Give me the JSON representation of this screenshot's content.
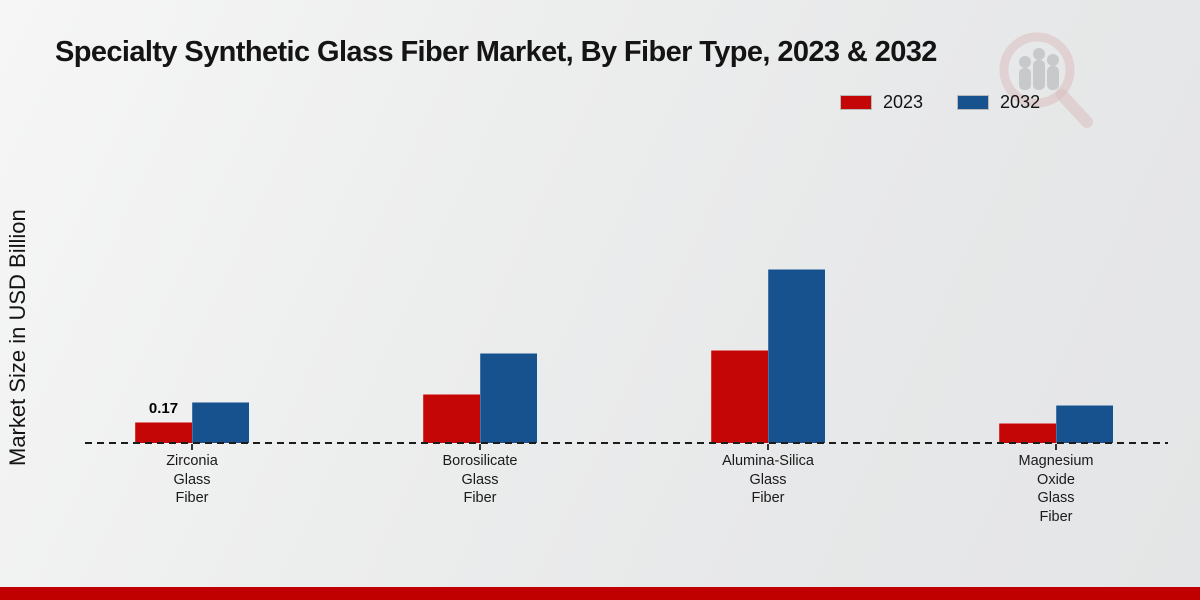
{
  "page": {
    "title": "Specialty Synthetic Glass Fiber Market, By Fiber Type, 2023 & 2032",
    "y_axis_label": "Market Size in USD Billion"
  },
  "legend": [
    {
      "label": "2023",
      "color": "#c40606"
    },
    {
      "label": "2032",
      "color": "#17518e"
    }
  ],
  "chart_data": {
    "type": "bar",
    "title": "Specialty Synthetic Glass Fiber Market, By Fiber Type, 2023 & 2032",
    "xlabel": "",
    "ylabel": "Market Size in USD Billion",
    "categories": [
      "Zirconia Glass Fiber",
      "Borosilicate Glass Fiber",
      "Alumina-Silica Glass Fiber",
      "Magnesium Oxide Glass Fiber"
    ],
    "category_lines": [
      [
        "Zirconia",
        "Glass",
        "Fiber"
      ],
      [
        "Borosilicate",
        "Glass",
        "Fiber"
      ],
      [
        "Alumina-Silica",
        "Glass",
        "Fiber"
      ],
      [
        "Magnesium",
        "Oxide",
        "Glass",
        "Fiber"
      ]
    ],
    "series": [
      {
        "name": "2023",
        "color": "#c40606",
        "values": [
          0.17,
          0.4,
          0.75,
          0.16
        ],
        "data_labels": [
          "0.17",
          "",
          "",
          ""
        ]
      },
      {
        "name": "2032",
        "color": "#17518e",
        "values": [
          0.33,
          0.73,
          1.41,
          0.31
        ],
        "data_labels": [
          "",
          "",
          "",
          ""
        ]
      }
    ],
    "ylim": [
      0,
      1.5
    ],
    "grid": false,
    "baseline_style": "dashed",
    "legend_position": "top-right"
  },
  "watermark": {
    "name": "magnifier-bar-chart-logo"
  },
  "footer": {
    "accent_color": "#c00000"
  }
}
